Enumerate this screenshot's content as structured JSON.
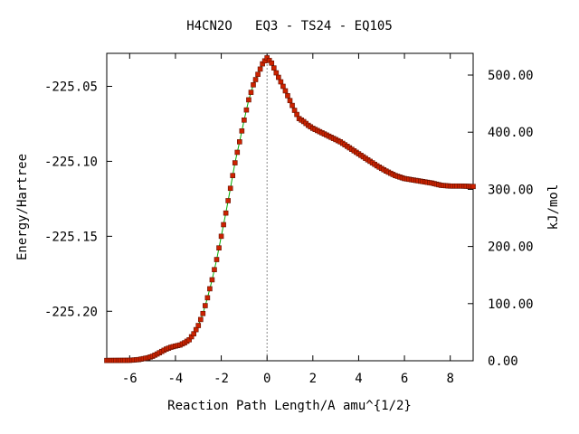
{
  "chart_data": {
    "type": "line",
    "title": "H4CN2O   EQ3 - TS24 - EQ105",
    "xlabel": "Reaction Path Length/A amu^{1/2}",
    "ylabel": "Energy/Hartree",
    "y2label": "kJ/mol",
    "xlim": [
      -7,
      9
    ],
    "ylim": [
      -225.233,
      -225.028
    ],
    "y2lim": [
      0,
      538
    ],
    "xticks": [
      "-6",
      "-4",
      "-2",
      "0",
      "2",
      "4",
      "6",
      "8"
    ],
    "xtick_values": [
      -6,
      -4,
      -2,
      0,
      2,
      4,
      6,
      8
    ],
    "yticks": [
      "-225.05",
      "-225.10",
      "-225.15",
      "-225.20"
    ],
    "ytick_values": [
      -225.05,
      -225.1,
      -225.15,
      -225.2
    ],
    "y2ticks": [
      "0.00",
      "100.00",
      "200.00",
      "300.00",
      "400.00",
      "500.00"
    ],
    "y2tick_values": [
      0,
      100,
      200,
      300,
      400,
      500
    ],
    "ts_marker_x": 0,
    "colors": {
      "line": "#00aa00",
      "marker": "#cc2200",
      "marker_edge": "#661100",
      "ts_line": "#888888"
    },
    "series": [
      {
        "x": [
          -7.0,
          -6.0,
          -5.6,
          -5.2,
          -5.0,
          -4.8,
          -4.6,
          -4.4,
          -4.2,
          -4.0,
          -3.8,
          -3.6,
          -3.4,
          -3.2,
          -3.0,
          -2.8,
          -2.6,
          -2.4,
          -2.2,
          -2.0,
          -1.8,
          -1.6,
          -1.4,
          -1.2,
          -1.0,
          -0.8,
          -0.6,
          -0.4,
          -0.2,
          0.0,
          0.2,
          0.4,
          0.6,
          0.8,
          1.0,
          1.2,
          1.4,
          1.6,
          1.8,
          2.0,
          2.4,
          2.8,
          3.2,
          3.6,
          4.0,
          4.4,
          4.8,
          5.2,
          5.6,
          6.0,
          6.4,
          6.8,
          7.2,
          7.6,
          8.0,
          8.5,
          9.0
        ],
        "y": [
          -225.2328,
          -225.2327,
          -225.2322,
          -225.231,
          -225.23,
          -225.2285,
          -225.2268,
          -225.2252,
          -225.224,
          -225.2232,
          -225.2225,
          -225.221,
          -225.219,
          -225.215,
          -225.2095,
          -225.2015,
          -225.191,
          -225.179,
          -225.1655,
          -225.15,
          -225.1345,
          -225.118,
          -225.101,
          -225.087,
          -225.0725,
          -225.059,
          -225.049,
          -225.042,
          -225.035,
          -225.031,
          -225.0345,
          -225.041,
          -225.047,
          -225.053,
          -225.0595,
          -225.066,
          -225.0715,
          -225.0735,
          -225.076,
          -225.078,
          -225.081,
          -225.084,
          -225.087,
          -225.091,
          -225.095,
          -225.099,
          -225.103,
          -225.1065,
          -225.1095,
          -225.1115,
          -225.1125,
          -225.1135,
          -225.1145,
          -225.116,
          -225.1165,
          -225.1165,
          -225.1168
        ]
      }
    ]
  }
}
